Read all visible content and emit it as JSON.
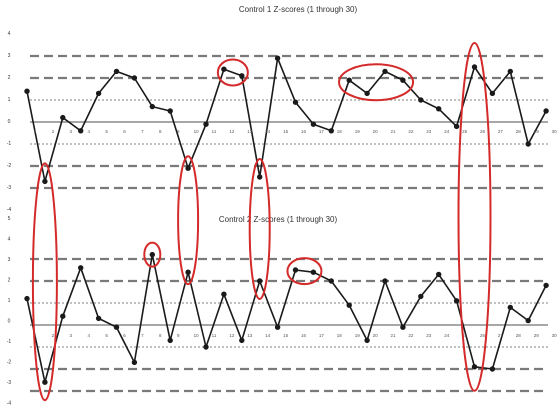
{
  "chart_data": [
    {
      "type": "line",
      "title": "Control 1 Z-scores (1 through 30)",
      "x": [
        1,
        2,
        3,
        4,
        5,
        6,
        7,
        8,
        9,
        10,
        11,
        12,
        13,
        14,
        15,
        16,
        17,
        18,
        19,
        20,
        21,
        22,
        23,
        24,
        25,
        26,
        27,
        28,
        29,
        30
      ],
      "values": [
        1.4,
        -2.7,
        0.2,
        -0.4,
        1.3,
        2.3,
        2.0,
        0.7,
        0.5,
        -2.1,
        -0.1,
        2.4,
        2.1,
        -2.5,
        2.9,
        0.9,
        -0.1,
        -0.4,
        1.9,
        1.3,
        2.3,
        1.9,
        1.0,
        0.6,
        -0.2,
        2.5,
        1.3,
        2.3,
        -1.0,
        0.5
      ],
      "yticks": [
        "4",
        "3",
        "2",
        "1",
        "0",
        "-1",
        "-2",
        "-3",
        "-4"
      ],
      "ylim": [
        -4,
        4
      ],
      "reference_lines": {
        "solid": [
          0
        ],
        "dotted": [
          -1,
          1
        ],
        "dashed": [
          -3,
          -2,
          2,
          3
        ]
      },
      "line_color": "#1a1a1a",
      "circle_color": "#d42a2a"
    },
    {
      "type": "line",
      "title": "Control 2 Z-scores (1 through 30)",
      "x": [
        1,
        2,
        3,
        4,
        5,
        6,
        7,
        8,
        9,
        10,
        11,
        12,
        13,
        14,
        15,
        16,
        17,
        18,
        19,
        20,
        21,
        22,
        23,
        24,
        25,
        26,
        27,
        28,
        29,
        30
      ],
      "values": [
        1.2,
        -2.6,
        0.4,
        2.6,
        0.3,
        -0.1,
        -1.7,
        3.2,
        -0.7,
        2.4,
        -1.0,
        1.4,
        -0.7,
        2.0,
        -0.1,
        2.5,
        2.4,
        2.0,
        0.9,
        -0.7,
        2.0,
        -0.1,
        1.3,
        2.3,
        1.1,
        -1.9,
        -2.0,
        0.8,
        0.2,
        1.8
      ],
      "yticks": [
        "5",
        "4",
        "3",
        "2",
        "1",
        "0",
        "-1",
        "-2",
        "-3",
        "-4"
      ],
      "ylim": [
        -4,
        5
      ],
      "reference_lines": {
        "solid": [
          0
        ],
        "dotted": [
          -1,
          1
        ],
        "dashed": [
          -3,
          -2,
          2,
          3
        ]
      },
      "line_color": "#1a1a1a",
      "circle_color": "#d42a2a"
    }
  ]
}
